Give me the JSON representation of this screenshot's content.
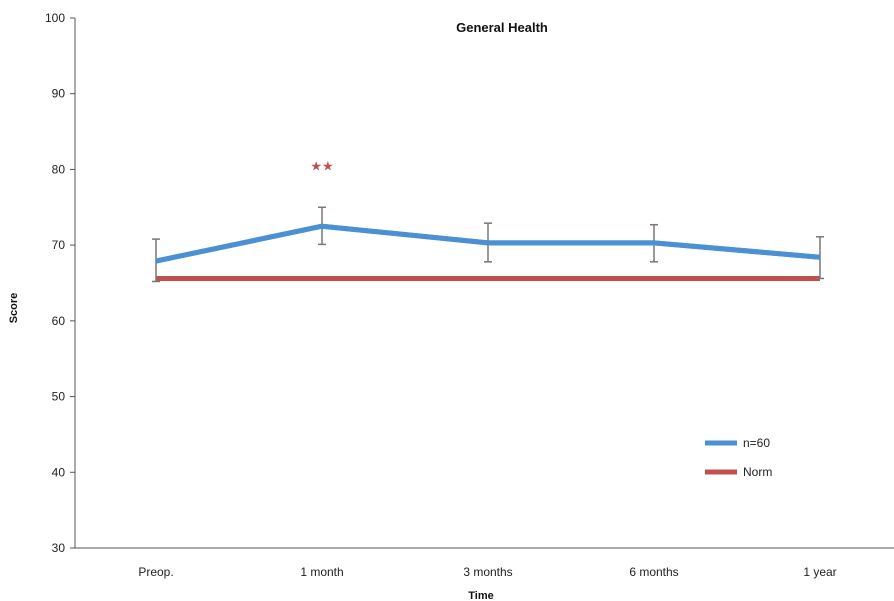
{
  "chart_data": {
    "type": "line",
    "title": "General Health",
    "xlabel": "Time",
    "ylabel": "Score",
    "categories": [
      "Preop.",
      "1 month",
      "3 months",
      "6 months",
      "1 year"
    ],
    "ylim": [
      30,
      100
    ],
    "yticks": [
      30,
      40,
      50,
      60,
      70,
      80,
      90,
      100
    ],
    "grid": false,
    "legend_position": "bottom-right",
    "series": [
      {
        "name": "n=60",
        "color": "#4a90d2",
        "values": [
          67.9,
          72.5,
          70.3,
          70.3,
          68.4
        ],
        "error_low": [
          65.2,
          70.1,
          67.8,
          67.8,
          65.6
        ],
        "error_high": [
          70.8,
          75.0,
          72.9,
          72.7,
          71.1
        ]
      },
      {
        "name": "Norm",
        "color": "#c0504d",
        "values": [
          65.6,
          65.6,
          65.6,
          65.6,
          65.6
        ]
      }
    ],
    "annotations": [
      {
        "text": "★★",
        "category": "1 month",
        "y": 80.5,
        "color": "#c0504d"
      }
    ]
  }
}
